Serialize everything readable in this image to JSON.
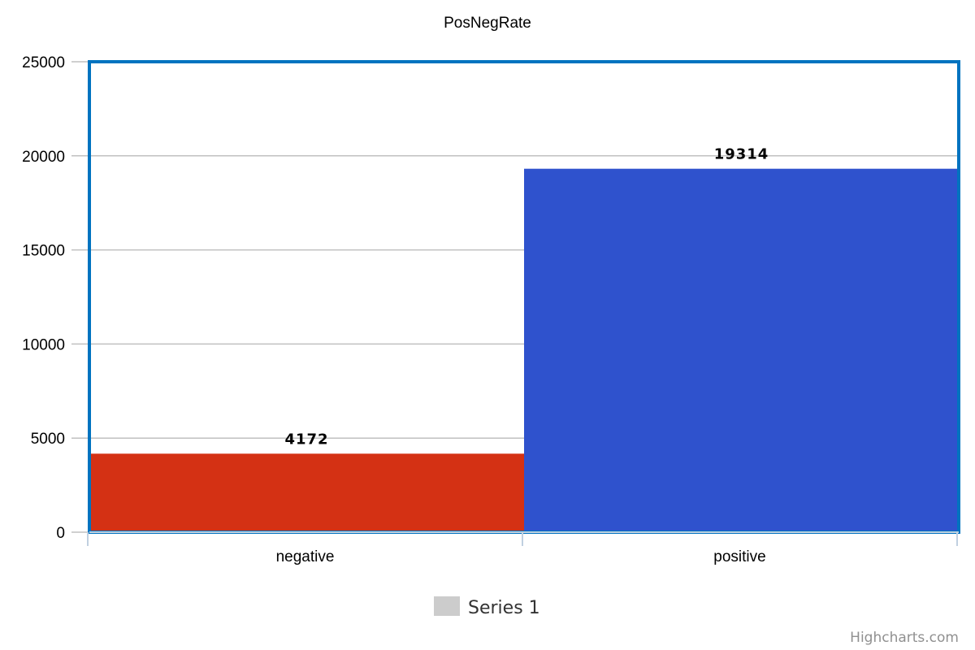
{
  "chart_data": {
    "type": "bar",
    "title": "PosNegRate",
    "categories": [
      "negative",
      "positive"
    ],
    "series": [
      {
        "name": "Series 1",
        "values": [
          4172,
          19314
        ],
        "colors": [
          "#d43114",
          "#2f52cd"
        ],
        "data_labels": [
          "4172",
          "19314"
        ]
      }
    ],
    "ylim": [
      0,
      25000
    ],
    "yticks": [
      "0",
      "5000",
      "10000",
      "15000",
      "20000",
      "25000"
    ],
    "grid": true,
    "legend": "bottom-center"
  },
  "legend": {
    "label": "Series 1",
    "symbol_color": "#cccccc"
  },
  "colors": {
    "plot_border": "#0073c0",
    "grid": "#c0c0c0",
    "axis": "#c0d0e0"
  },
  "credits": "Highcharts.com"
}
